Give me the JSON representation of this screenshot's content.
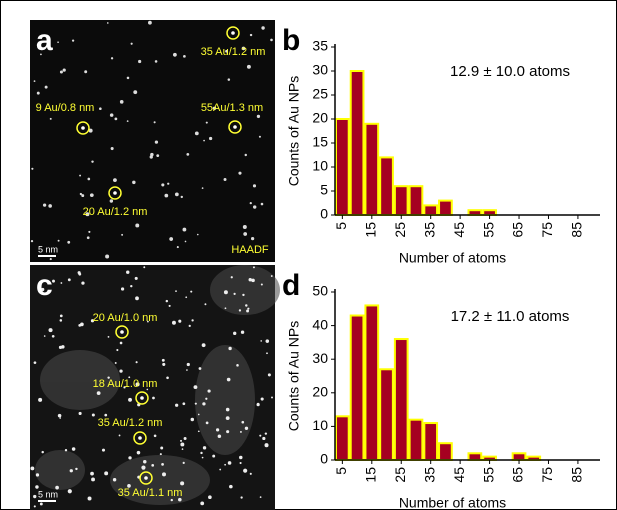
{
  "images": [
    {
      "label": "a",
      "annotations": [
        "35 Au/1.2 nm",
        "9 Au/0.8 nm",
        "55Au/1.3 nm",
        "20 Au/1.2 nm"
      ],
      "scale": "5 nm",
      "mode": "HAADF"
    },
    {
      "label": "c",
      "annotations": [
        "20 Au/1.0 nm",
        "18 Au/1.0 nm",
        "35 Au/1.2 nm",
        "35 Au/1.1 nm"
      ],
      "scale": "5 nm"
    }
  ],
  "chart_data": [
    {
      "type": "histogram",
      "panel_label": "b",
      "annotation": "12.9 ± 10.0 atoms",
      "x_label": "Number of atoms",
      "y_label": "Counts of Au NPs",
      "bins": [
        2.5,
        7.5,
        12.5,
        17.5,
        22.5,
        27.5,
        32.5,
        37.5,
        42.5,
        47.5,
        52.5,
        57.5,
        62.5,
        67.5,
        72.5,
        77.5,
        82.5,
        87.5,
        92.5
      ],
      "values": [
        20,
        30,
        19,
        12,
        6,
        6,
        2,
        3,
        0,
        1,
        1,
        0,
        0,
        0,
        0,
        0,
        0,
        0
      ],
      "color": "#a50021",
      "edge_color": "#ffff00",
      "xlim": [
        2.5,
        92.5
      ],
      "xticks": [
        5,
        15,
        25,
        35,
        45,
        55,
        65,
        75,
        85
      ],
      "ylim": [
        0,
        35
      ],
      "yticks": [
        0,
        5,
        10,
        15,
        20,
        25,
        30,
        35
      ]
    },
    {
      "type": "histogram",
      "panel_label": "d",
      "annotation": "17.2 ± 11.0 atoms",
      "x_label": "Number of atoms",
      "y_label": "Counts of Au NPs",
      "bins": [
        2.5,
        7.5,
        12.5,
        17.5,
        22.5,
        27.5,
        32.5,
        37.5,
        42.5,
        47.5,
        52.5,
        57.5,
        62.5,
        67.5,
        72.5,
        77.5,
        82.5,
        87.5,
        92.5
      ],
      "values": [
        13,
        43,
        46,
        27,
        36,
        12,
        11,
        5,
        0,
        2,
        1,
        0,
        2,
        1,
        0,
        0,
        0,
        0
      ],
      "color": "#a50021",
      "edge_color": "#ffff00",
      "xlim": [
        2.5,
        92.5
      ],
      "xticks": [
        5,
        15,
        25,
        35,
        45,
        55,
        65,
        75,
        85
      ],
      "ylim": [
        0,
        50
      ],
      "yticks": [
        0,
        10,
        20,
        30,
        40,
        50
      ]
    }
  ]
}
